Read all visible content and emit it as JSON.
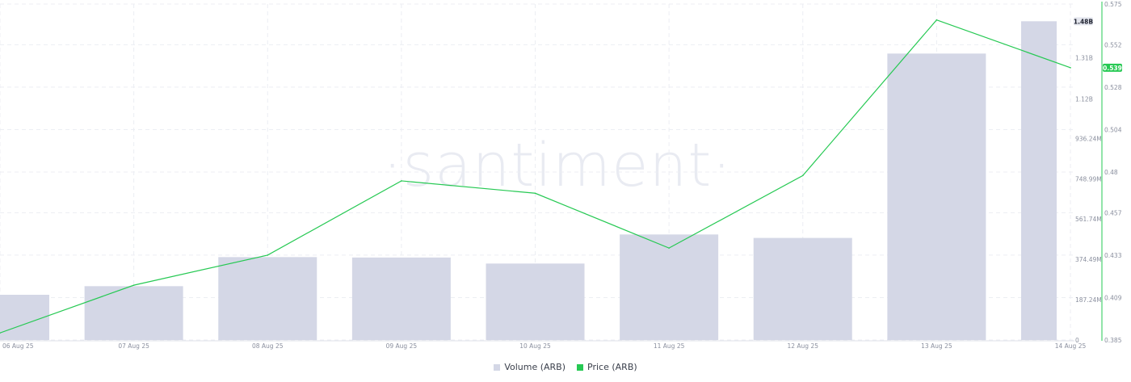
{
  "chart_data": {
    "type": "bar+line",
    "title": "",
    "watermark": "·santiment·",
    "x": [
      "06 Aug 25",
      "07 Aug 25",
      "08 Aug 25",
      "09 Aug 25",
      "10 Aug 25",
      "11 Aug 25",
      "12 Aug 25",
      "13 Aug 25",
      "14 Aug 25"
    ],
    "series": [
      {
        "name": "Volume (ARB)",
        "type": "bar",
        "axis": "volume",
        "color": "#d4d7e6",
        "values": [
          210000000,
          250000000,
          385000000,
          383000000,
          355000000,
          490000000,
          474000000,
          1330000000,
          1480000000
        ]
      },
      {
        "name": "Price (ARB)",
        "type": "line",
        "axis": "price",
        "color": "#26c953",
        "values": [
          0.389,
          0.416,
          0.433,
          0.475,
          0.468,
          0.437,
          0.478,
          0.566,
          0.539
        ]
      }
    ],
    "axes": {
      "volume": {
        "min": 0,
        "max": 1560000000,
        "ticks": [
          0,
          187240000,
          374490000,
          561740000,
          748990000,
          936240000,
          1120000000,
          1310000000
        ],
        "tick_labels": [
          "0",
          "187.24M",
          "374.49M",
          "561.74M",
          "748.99M",
          "936.24M",
          "1.12B",
          "1.31B"
        ],
        "current_label": "1.48B",
        "current_value": 1480000000,
        "current_color": "#e4e6ee"
      },
      "price": {
        "min": 0.385,
        "max": 0.575,
        "ticks": [
          0.385,
          0.409,
          0.433,
          0.457,
          0.48,
          0.504,
          0.528,
          0.552,
          0.575
        ],
        "tick_labels": [
          "0.385",
          "0.409",
          "0.433",
          "0.457",
          "0.48",
          "0.504",
          "0.528",
          "0.552",
          "0.575"
        ],
        "current_label": "0.539",
        "current_value": 0.539,
        "current_color": "#26c953"
      }
    },
    "grid": true,
    "legend_position": "bottom-center"
  },
  "legend": {
    "volume_label": "Volume (ARB)",
    "price_label": "Price (ARB)"
  }
}
